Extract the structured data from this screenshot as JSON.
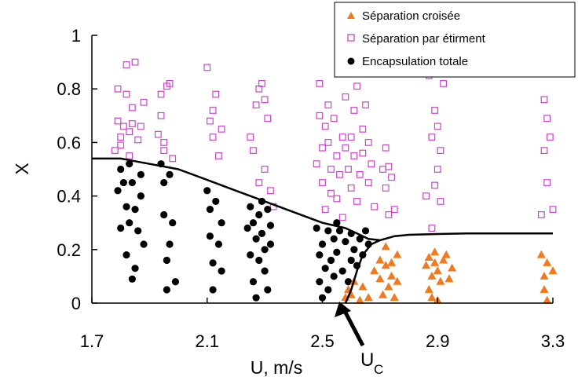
{
  "chart_data": {
    "type": "scatter",
    "xlabel": "U, m/s",
    "ylabel": "X",
    "xlim": [
      1.7,
      3.3
    ],
    "ylim": [
      0,
      1
    ],
    "xticks": [
      "1.7",
      "2.1",
      "2.5",
      "2.9",
      "3.3"
    ],
    "yticks": [
      "0",
      "0.2",
      "0.4",
      "0.6",
      "0.8",
      "1"
    ],
    "grid": false,
    "legend_position": "top-right",
    "series": [
      {
        "name": "Séparation croisée",
        "marker": "triangle",
        "color": "#f07a20",
        "points": [
          [
            2.58,
            0.02
          ],
          [
            2.59,
            0.05
          ],
          [
            2.6,
            0.03
          ],
          [
            2.61,
            0.08
          ],
          [
            2.63,
            0.01
          ],
          [
            2.64,
            0.06
          ],
          [
            2.66,
            0.02
          ],
          [
            2.68,
            0.12
          ],
          [
            2.7,
            0.16
          ],
          [
            2.7,
            0.09
          ],
          [
            2.71,
            0.03
          ],
          [
            2.72,
            0.14
          ],
          [
            2.72,
            0.21
          ],
          [
            2.73,
            0.06
          ],
          [
            2.74,
            0.1
          ],
          [
            2.74,
            0.15
          ],
          [
            2.75,
            0.02
          ],
          [
            2.76,
            0.08
          ],
          [
            2.76,
            0.18
          ],
          [
            2.86,
            0.14
          ],
          [
            2.87,
            0.05
          ],
          [
            2.87,
            0.17
          ],
          [
            2.88,
            0.1
          ],
          [
            2.88,
            0.02
          ],
          [
            2.89,
            0.19
          ],
          [
            2.89,
            0.15
          ],
          [
            2.9,
            0.01
          ],
          [
            2.9,
            0.12
          ],
          [
            2.91,
            0.08
          ],
          [
            2.92,
            0.16
          ],
          [
            2.93,
            0.18
          ],
          [
            2.94,
            0.09
          ],
          [
            2.95,
            0.13
          ],
          [
            3.26,
            0.18
          ],
          [
            3.27,
            0.1
          ],
          [
            3.27,
            0.05
          ],
          [
            3.28,
            0.01
          ],
          [
            3.28,
            0.15
          ],
          [
            3.3,
            0.12
          ]
        ]
      },
      {
        "name": "Séparation par étirment",
        "marker": "open-square",
        "color": "#cc44cc",
        "points": [
          [
            1.78,
            0.57
          ],
          [
            1.79,
            0.8
          ],
          [
            1.79,
            0.68
          ],
          [
            1.8,
            0.62
          ],
          [
            1.8,
            0.59
          ],
          [
            1.81,
            0.66
          ],
          [
            1.82,
            0.78
          ],
          [
            1.82,
            0.89
          ],
          [
            1.83,
            0.64
          ],
          [
            1.83,
            0.55
          ],
          [
            1.84,
            0.67
          ],
          [
            1.84,
            0.73
          ],
          [
            1.85,
            0.9
          ],
          [
            1.86,
            0.61
          ],
          [
            1.87,
            0.66
          ],
          [
            1.88,
            0.75
          ],
          [
            1.93,
            0.63
          ],
          [
            1.94,
            0.7
          ],
          [
            1.94,
            0.78
          ],
          [
            1.95,
            0.6
          ],
          [
            1.95,
            0.57
          ],
          [
            1.96,
            0.81
          ],
          [
            1.97,
            0.82
          ],
          [
            1.98,
            0.54
          ],
          [
            2.1,
            0.88
          ],
          [
            2.11,
            0.68
          ],
          [
            2.12,
            0.72
          ],
          [
            2.12,
            0.62
          ],
          [
            2.13,
            0.78
          ],
          [
            2.14,
            0.55
          ],
          [
            2.15,
            0.65
          ],
          [
            2.25,
            0.62
          ],
          [
            2.26,
            0.57
          ],
          [
            2.27,
            0.74
          ],
          [
            2.28,
            0.45
          ],
          [
            2.28,
            0.8
          ],
          [
            2.29,
            0.82
          ],
          [
            2.3,
            0.5
          ],
          [
            2.3,
            0.76
          ],
          [
            2.31,
            0.69
          ],
          [
            2.32,
            0.42
          ],
          [
            2.33,
            0.36
          ],
          [
            2.48,
            0.52
          ],
          [
            2.49,
            0.82
          ],
          [
            2.49,
            0.7
          ],
          [
            2.5,
            0.58
          ],
          [
            2.5,
            0.45
          ],
          [
            2.51,
            0.66
          ],
          [
            2.51,
            0.35
          ],
          [
            2.52,
            0.74
          ],
          [
            2.52,
            0.6
          ],
          [
            2.53,
            0.5
          ],
          [
            2.53,
            0.41
          ],
          [
            2.54,
            0.69
          ],
          [
            2.55,
            0.55
          ],
          [
            2.55,
            0.39
          ],
          [
            2.56,
            0.48
          ],
          [
            2.57,
            0.62
          ],
          [
            2.57,
            0.32
          ],
          [
            2.58,
            0.58
          ],
          [
            2.58,
            0.77
          ],
          [
            2.59,
            0.5
          ],
          [
            2.59,
            0.9
          ],
          [
            2.6,
            0.43
          ],
          [
            2.6,
            0.62
          ],
          [
            2.61,
            0.72
          ],
          [
            2.61,
            0.55
          ],
          [
            2.62,
            0.38
          ],
          [
            2.62,
            0.81
          ],
          [
            2.63,
            0.48
          ],
          [
            2.64,
            0.65
          ],
          [
            2.64,
            0.56
          ],
          [
            2.65,
            0.74
          ],
          [
            2.66,
            0.45
          ],
          [
            2.66,
            0.6
          ],
          [
            2.67,
            0.52
          ],
          [
            2.68,
            0.36
          ],
          [
            2.71,
            0.5
          ],
          [
            2.72,
            0.43
          ],
          [
            2.72,
            0.58
          ],
          [
            2.73,
            0.33
          ],
          [
            2.73,
            0.51
          ],
          [
            2.74,
            0.47
          ],
          [
            2.75,
            0.35
          ],
          [
            2.86,
            0.4
          ],
          [
            2.87,
            0.85
          ],
          [
            2.88,
            0.28
          ],
          [
            2.88,
            0.62
          ],
          [
            2.89,
            0.44
          ],
          [
            2.89,
            0.72
          ],
          [
            2.9,
            0.5
          ],
          [
            2.9,
            0.66
          ],
          [
            2.91,
            0.57
          ],
          [
            2.91,
            0.38
          ],
          [
            2.92,
            0.82
          ],
          [
            3.26,
            0.33
          ],
          [
            3.27,
            0.76
          ],
          [
            3.27,
            0.57
          ],
          [
            3.28,
            0.69
          ],
          [
            3.28,
            0.45
          ],
          [
            3.29,
            0.62
          ],
          [
            3.3,
            0.35
          ]
        ]
      },
      {
        "name": "Encapsulation totale",
        "marker": "filled-circle",
        "color": "#000000",
        "points": [
          [
            1.79,
            0.42
          ],
          [
            1.8,
            0.5
          ],
          [
            1.8,
            0.28
          ],
          [
            1.81,
            0.45
          ],
          [
            1.82,
            0.36
          ],
          [
            1.82,
            0.18
          ],
          [
            1.83,
            0.52
          ],
          [
            1.83,
            0.3
          ],
          [
            1.84,
            0.09
          ],
          [
            1.84,
            0.45
          ],
          [
            1.85,
            0.13
          ],
          [
            1.85,
            0.35
          ],
          [
            1.86,
            0.27
          ],
          [
            1.87,
            0.4
          ],
          [
            1.87,
            0.48
          ],
          [
            1.88,
            0.22
          ],
          [
            1.94,
            0.52
          ],
          [
            1.95,
            0.45
          ],
          [
            1.95,
            0.33
          ],
          [
            1.96,
            0.16
          ],
          [
            1.96,
            0.05
          ],
          [
            1.97,
            0.48
          ],
          [
            1.97,
            0.22
          ],
          [
            1.98,
            0.3
          ],
          [
            1.99,
            0.08
          ],
          [
            2.1,
            0.42
          ],
          [
            2.11,
            0.35
          ],
          [
            2.11,
            0.25
          ],
          [
            2.12,
            0.15
          ],
          [
            2.12,
            0.05
          ],
          [
            2.13,
            0.38
          ],
          [
            2.14,
            0.22
          ],
          [
            2.15,
            0.3
          ],
          [
            2.15,
            0.12
          ],
          [
            2.24,
            0.28
          ],
          [
            2.25,
            0.36
          ],
          [
            2.25,
            0.18
          ],
          [
            2.26,
            0.08
          ],
          [
            2.26,
            0.3
          ],
          [
            2.27,
            0.24
          ],
          [
            2.27,
            0.02
          ],
          [
            2.28,
            0.33
          ],
          [
            2.28,
            0.16
          ],
          [
            2.29,
            0.38
          ],
          [
            2.29,
            0.26
          ],
          [
            2.3,
            0.12
          ],
          [
            2.3,
            0.2
          ],
          [
            2.31,
            0.35
          ],
          [
            2.31,
            0.05
          ],
          [
            2.32,
            0.29
          ],
          [
            2.32,
            0.22
          ],
          [
            2.48,
            0.28
          ],
          [
            2.49,
            0.18
          ],
          [
            2.49,
            0.08
          ],
          [
            2.5,
            0.22
          ],
          [
            2.5,
            0.02
          ],
          [
            2.51,
            0.13
          ],
          [
            2.52,
            0.27
          ],
          [
            2.52,
            0.05
          ],
          [
            2.53,
            0.16
          ],
          [
            2.54,
            0.24
          ],
          [
            2.54,
            0.1
          ],
          [
            2.55,
            0.3
          ],
          [
            2.55,
            0.19
          ],
          [
            2.56,
            0.27
          ],
          [
            2.57,
            0.12
          ],
          [
            2.58,
            0.23
          ],
          [
            2.59,
            0.08
          ],
          [
            2.6,
            0.16
          ],
          [
            2.6,
            0.26
          ],
          [
            2.61,
            0.2
          ],
          [
            2.62,
            0.14
          ],
          [
            2.63,
            0.24
          ],
          [
            2.64,
            0.18
          ],
          [
            2.65,
            0.27
          ],
          [
            2.66,
            0.22
          ]
        ]
      }
    ],
    "boundary_curve": [
      [
        1.7,
        0.54
      ],
      [
        1.8,
        0.54
      ],
      [
        1.85,
        0.53
      ],
      [
        1.9,
        0.52
      ],
      [
        2.0,
        0.5
      ],
      [
        2.1,
        0.46
      ],
      [
        2.2,
        0.42
      ],
      [
        2.3,
        0.38
      ],
      [
        2.4,
        0.34
      ],
      [
        2.5,
        0.3
      ],
      [
        2.58,
        0.28
      ],
      [
        2.62,
        0.26
      ],
      [
        2.66,
        0.24
      ],
      [
        2.7,
        0.235
      ],
      [
        2.75,
        0.25
      ],
      [
        2.8,
        0.255
      ],
      [
        2.9,
        0.258
      ],
      [
        3.0,
        0.26
      ],
      [
        3.1,
        0.26
      ],
      [
        3.2,
        0.26
      ],
      [
        3.3,
        0.26
      ]
    ],
    "uc_curve": [
      [
        2.58,
        0.0
      ],
      [
        2.6,
        0.05
      ],
      [
        2.62,
        0.12
      ],
      [
        2.64,
        0.18
      ],
      [
        2.67,
        0.22
      ],
      [
        2.7,
        0.235
      ]
    ],
    "annotation": {
      "label_main": "U",
      "label_sub": "C",
      "x": 2.58,
      "y": 0.0
    }
  }
}
